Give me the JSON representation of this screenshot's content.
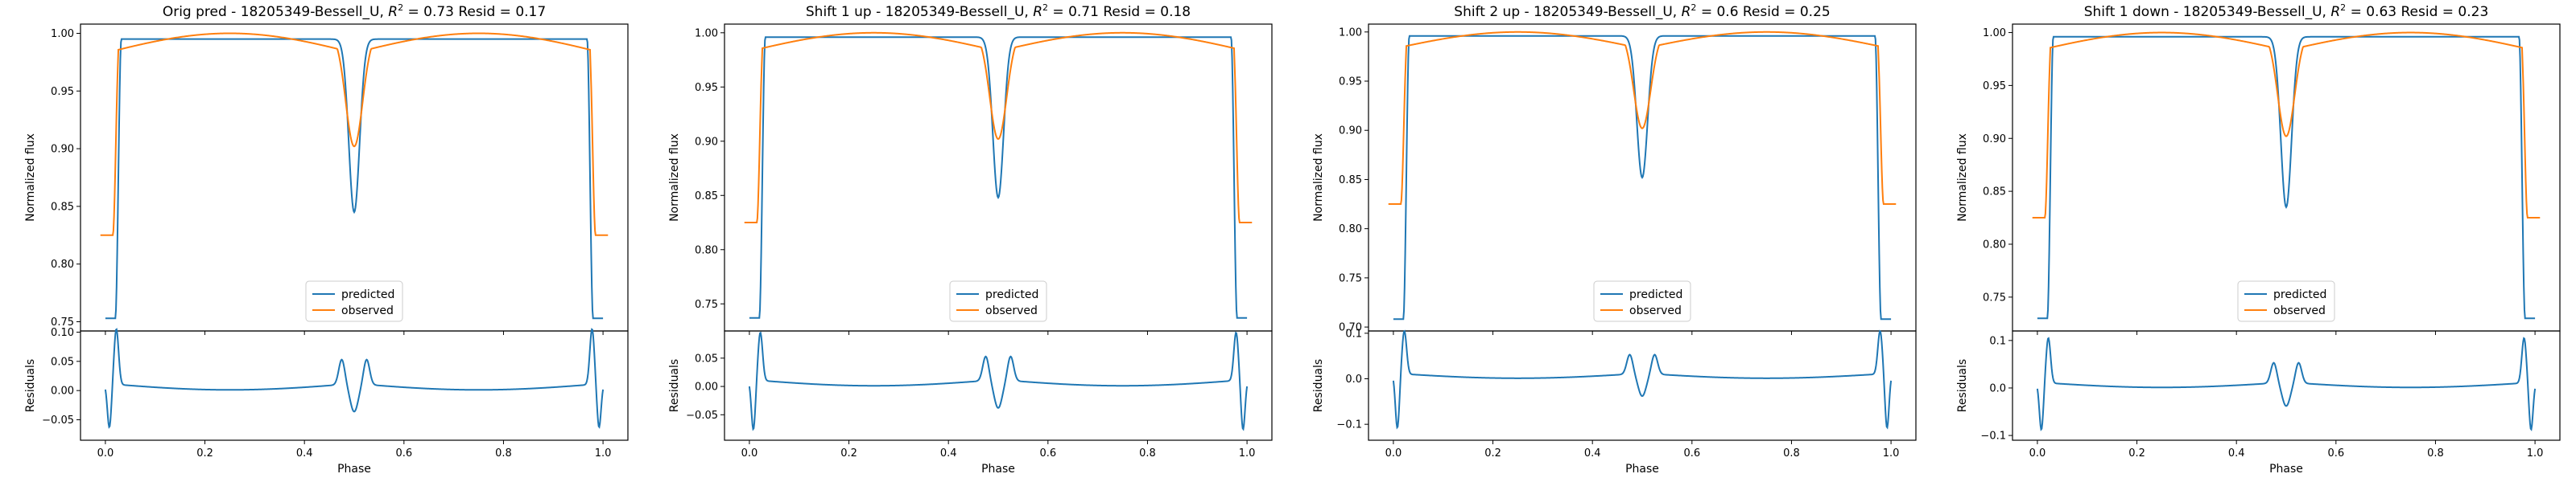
{
  "colors": {
    "predicted": "#1f77b4",
    "observed": "#ff7f0e",
    "axes": "#000000"
  },
  "chart_data": [
    {
      "type": "line",
      "title": "Orig pred - 18205349-Bessell_U, $R^2 = 0.73$ Resid = 0.17",
      "title_parts": {
        "prefix": "Orig pred - 18205349-Bessell_U, ",
        "r2_symbol": "R",
        "r2_exp": "2",
        "r2_value": " = 0.73",
        "suffix": " Resid = 0.17"
      },
      "xlabel": "Phase",
      "ylabel_main": "Normalized flux",
      "ylabel_resid": "Residuals",
      "xlim": [
        -0.05,
        1.05
      ],
      "ylim_main": [
        0.742,
        1.008
      ],
      "ylim_resid": [
        -0.085,
        0.102
      ],
      "xticks": [
        "0.0",
        "0.2",
        "0.4",
        "0.6",
        "0.8",
        "1.0"
      ],
      "yticks_main": [
        "0.75",
        "0.80",
        "0.85",
        "0.90",
        "0.95",
        "1.00"
      ],
      "yticks_resid": [
        "-0.05",
        "0.00",
        "0.05",
        "0.10"
      ],
      "legend": {
        "position": "lower-center",
        "entries": [
          "predicted",
          "observed"
        ]
      },
      "series_model": {
        "predicted": {
          "plateau": 0.995,
          "ingress_start": 0.02,
          "ingress_width": 0.012,
          "out_of_plateau": 0.753,
          "secondary_depth": 0.845,
          "secondary_halfwidth": 0.018
        },
        "observed": {
          "edge": 0.825,
          "peak": 1.0,
          "shoulder": 0.983,
          "edge_x": 0.025,
          "secondary_depth": 0.902
        }
      },
      "residual_model": {
        "spike": 0.095,
        "dip": -0.075,
        "inner_spike": 0.043,
        "inner_dip": -0.048,
        "baseline": 0.012
      }
    },
    {
      "type": "line",
      "title": "Shift 1 up - 18205349-Bessell_U, $R^2 = 0.71$ Resid = 0.18",
      "title_parts": {
        "prefix": "Shift 1 up - 18205349-Bessell_U, ",
        "r2_symbol": "R",
        "r2_exp": "2",
        "r2_value": " = 0.71",
        "suffix": " Resid = 0.18"
      },
      "xlabel": "Phase",
      "ylabel_main": "Normalized flux",
      "ylabel_resid": "Residuals",
      "xlim": [
        -0.05,
        1.05
      ],
      "ylim_main": [
        0.725,
        1.008
      ],
      "ylim_resid": [
        -0.095,
        0.098
      ],
      "xticks": [
        "0.0",
        "0.2",
        "0.4",
        "0.6",
        "0.8",
        "1.0"
      ],
      "yticks_main": [
        "0.75",
        "0.80",
        "0.85",
        "0.90",
        "0.95",
        "1.00"
      ],
      "yticks_resid": [
        "-0.05",
        "0.00",
        "0.05"
      ],
      "legend": {
        "position": "lower-center",
        "entries": [
          "predicted",
          "observed"
        ]
      },
      "series_model": {
        "predicted": {
          "plateau": 0.996,
          "ingress_start": 0.02,
          "ingress_width": 0.012,
          "out_of_plateau": 0.737,
          "secondary_depth": 0.848,
          "secondary_halfwidth": 0.018
        },
        "observed": {
          "edge": 0.825,
          "peak": 1.0,
          "shoulder": 0.983,
          "edge_x": 0.025,
          "secondary_depth": 0.902
        }
      },
      "residual_model": {
        "spike": 0.085,
        "dip": -0.088,
        "inner_spike": 0.043,
        "inner_dip": -0.05,
        "baseline": 0.012
      }
    },
    {
      "type": "line",
      "title": "Shift 2 up - 18205349-Bessell_U, $R^2 = 0.6$ Resid = 0.25",
      "title_parts": {
        "prefix": "Shift 2 up - 18205349-Bessell_U, ",
        "r2_symbol": "R",
        "r2_exp": "2",
        "r2_value": " = 0.6",
        "suffix": " Resid = 0.25"
      },
      "xlabel": "Phase",
      "ylabel_main": "Normalized flux",
      "ylabel_resid": "Residuals",
      "xlim": [
        -0.05,
        1.05
      ],
      "ylim_main": [
        0.696,
        1.008
      ],
      "ylim_resid": [
        -0.135,
        0.105
      ],
      "xticks": [
        "0.0",
        "0.2",
        "0.4",
        "0.6",
        "0.8",
        "1.0"
      ],
      "yticks_main": [
        "0.70",
        "0.75",
        "0.80",
        "0.85",
        "0.90",
        "0.95",
        "1.00"
      ],
      "yticks_resid": [
        "-0.1",
        "0.0",
        "0.1"
      ],
      "legend": {
        "position": "lower-center",
        "entries": [
          "predicted",
          "observed"
        ]
      },
      "series_model": {
        "predicted": {
          "plateau": 0.996,
          "ingress_start": 0.02,
          "ingress_width": 0.012,
          "out_of_plateau": 0.708,
          "secondary_depth": 0.852,
          "secondary_halfwidth": 0.018
        },
        "observed": {
          "edge": 0.825,
          "peak": 1.0,
          "shoulder": 0.983,
          "edge_x": 0.025,
          "secondary_depth": 0.902
        }
      },
      "residual_model": {
        "spike": 0.095,
        "dip": -0.12,
        "inner_spike": 0.043,
        "inner_dip": -0.05,
        "baseline": 0.012
      }
    },
    {
      "type": "line",
      "title": "Shift 1 down - 18205349-Bessell_U, $R^2 = 0.63$ Resid = 0.23",
      "title_parts": {
        "prefix": "Shift 1 down - 18205349-Bessell_U, ",
        "r2_symbol": "R",
        "r2_exp": "2",
        "r2_value": " = 0.63",
        "suffix": " Resid = 0.23"
      },
      "xlabel": "Phase",
      "ylabel_main": "Normalized flux",
      "ylabel_resid": "Residuals",
      "xlim": [
        -0.05,
        1.05
      ],
      "ylim_main": [
        0.718,
        1.008
      ],
      "ylim_resid": [
        -0.11,
        0.12
      ],
      "xticks": [
        "0.0",
        "0.2",
        "0.4",
        "0.6",
        "0.8",
        "1.0"
      ],
      "yticks_main": [
        "0.75",
        "0.80",
        "0.85",
        "0.90",
        "0.95",
        "1.00"
      ],
      "yticks_resid": [
        "-0.1",
        "0.0",
        "0.1"
      ],
      "legend": {
        "position": "lower-center",
        "entries": [
          "predicted",
          "observed"
        ]
      },
      "series_model": {
        "predicted": {
          "plateau": 0.996,
          "ingress_start": 0.02,
          "ingress_width": 0.012,
          "out_of_plateau": 0.73,
          "secondary_depth": 0.835,
          "secondary_halfwidth": 0.018
        },
        "observed": {
          "edge": 0.825,
          "peak": 1.0,
          "shoulder": 0.983,
          "edge_x": 0.025,
          "secondary_depth": 0.902
        }
      },
      "residual_model": {
        "spike": 0.095,
        "dip": -0.1,
        "inner_spike": 0.043,
        "inner_dip": -0.05,
        "baseline": 0.012
      }
    }
  ]
}
